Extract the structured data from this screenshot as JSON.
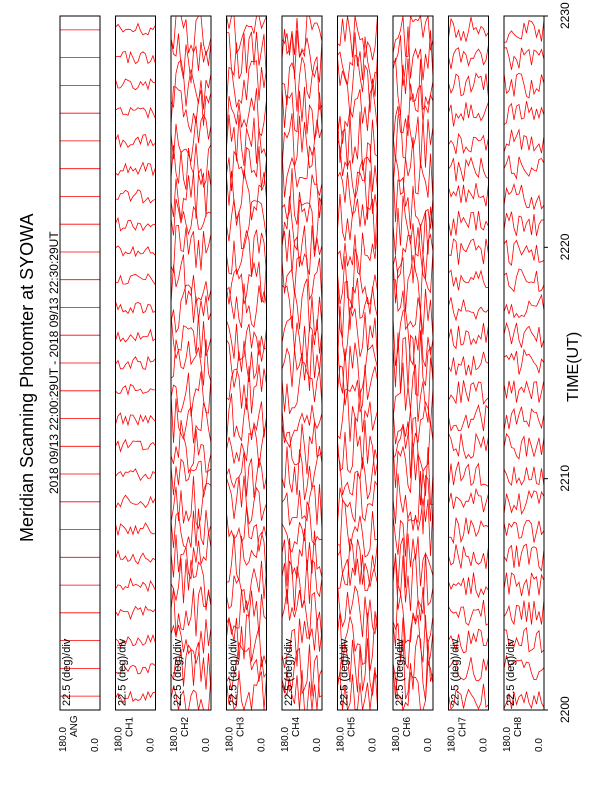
{
  "chart_data": {
    "type": "line",
    "orientation": "rotated-90-clockwise",
    "title": "Meridian Scanning Photomter at SYOWA",
    "subtitle": "2018 09/13 22:00:29UT - 2018 09/13 22:30:29UT",
    "xlabel": "TIME(UT)",
    "x_ticks": [
      "2200",
      "2210",
      "2220",
      "2230"
    ],
    "x_range": [
      "2200",
      "2230"
    ],
    "panels": [
      {
        "label": "ANG",
        "scale": "22.5 (deg)/div",
        "ylim": [
          0.0,
          180.0
        ],
        "ytick_top": "180.0",
        "ytick_bottom": "0.0",
        "trace_count": 25,
        "amplitude": 0.0,
        "style": "constant"
      },
      {
        "label": "CH1",
        "scale": "22.5 (deg)/div",
        "ylim": [
          0.0,
          180.0
        ],
        "ytick_top": "180.0",
        "ytick_bottom": "0.0",
        "trace_count": 25,
        "amplitude": 0.15,
        "style": "mostly-flat"
      },
      {
        "label": "CH2",
        "scale": "22.5 (deg)/div",
        "ylim": [
          0.0,
          180.0
        ],
        "ytick_top": "180.0",
        "ytick_bottom": "0.0",
        "trace_count": 25,
        "amplitude": 0.6,
        "style": "active"
      },
      {
        "label": "CH3",
        "scale": "22.5 (deg)/div",
        "ylim": [
          0.0,
          180.0
        ],
        "ytick_top": "180.0",
        "ytick_bottom": "0.0",
        "trace_count": 25,
        "amplitude": 0.6,
        "style": "active"
      },
      {
        "label": "CH4",
        "scale": "22.5 (deg)/div",
        "ylim": [
          0.0,
          180.0
        ],
        "ytick_top": "180.0",
        "ytick_bottom": "0.0",
        "trace_count": 25,
        "amplitude": 0.65,
        "style": "active"
      },
      {
        "label": "CH5",
        "scale": "22.5 (deg)/div",
        "ylim": [
          0.0,
          180.0
        ],
        "ytick_top": "180.0",
        "ytick_bottom": "0.0",
        "trace_count": 25,
        "amplitude": 0.7,
        "style": "active"
      },
      {
        "label": "CH6",
        "scale": "22.5 (deg)/div",
        "ylim": [
          0.0,
          180.0
        ],
        "ytick_top": "180.0",
        "ytick_bottom": "0.0",
        "trace_count": 25,
        "amplitude": 0.75,
        "style": "active"
      },
      {
        "label": "CH7",
        "scale": "22.5 (deg)/div",
        "ylim": [
          0.0,
          180.0
        ],
        "ytick_top": "180.0",
        "ytick_bottom": "0.0",
        "trace_count": 25,
        "amplitude": 0.3,
        "style": "quiet"
      },
      {
        "label": "CH8",
        "scale": "22.5 (deg)/div",
        "ylim": [
          0.0,
          180.0
        ],
        "ytick_top": "180.0",
        "ytick_bottom": "0.0",
        "trace_count": 25,
        "amplitude": 0.3,
        "style": "quiet"
      }
    ],
    "series_color": "#ff0000",
    "grid": false
  }
}
